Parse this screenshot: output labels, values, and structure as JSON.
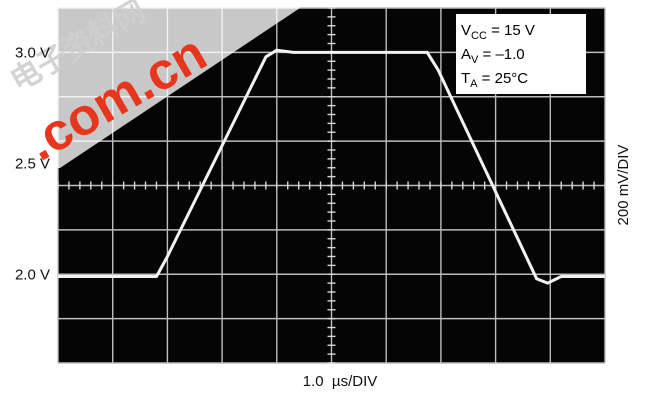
{
  "chart_data": {
    "type": "line",
    "title": "",
    "xlabel": "1.0  µs/DIV",
    "ylabel": "200 mV/DIV",
    "x_divisions": 10,
    "y_divisions": 8,
    "xlim": [
      0,
      10
    ],
    "ylim": [
      1.6,
      3.2
    ],
    "grid": true,
    "y_ticks": [
      {
        "value": 3.0,
        "label": "3.0 V"
      },
      {
        "value": 2.5,
        "label": "2.5 V"
      },
      {
        "value": 2.0,
        "label": "2.0 V"
      }
    ],
    "series": [
      {
        "name": "",
        "color": "#f2f2f2",
        "x": [
          0,
          1.8,
          2.0,
          3.8,
          4.0,
          4.3,
          5.0,
          6.0,
          6.75,
          6.95,
          8.75,
          8.95,
          9.2,
          10
        ],
        "y": [
          1.99,
          1.99,
          2.08,
          2.98,
          3.01,
          3.0,
          3.0,
          3.0,
          3.0,
          2.92,
          1.98,
          1.96,
          1.99,
          1.99
        ]
      }
    ],
    "annotations": {
      "vcc_main": "V",
      "vcc_sub": "CC",
      "vcc_rest": " = 15 V",
      "av_main": "A",
      "av_sub": "V",
      "av_rest": " = –1.0",
      "ta_main": "T",
      "ta_sub": "A",
      "ta_rest": " = 25°C"
    }
  },
  "watermark": {
    "glyphs": "电子资料网",
    "domain": ".com.cn",
    "color": "#e8361e"
  }
}
